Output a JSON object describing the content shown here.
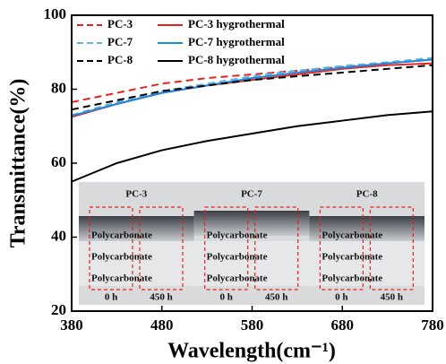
{
  "chart_data": {
    "type": "line",
    "xlabel": "Wavelength(cm⁻¹)",
    "ylabel": "Transmittance(%)",
    "x": [
      380,
      430,
      480,
      530,
      580,
      630,
      680,
      730,
      780
    ],
    "series": [
      {
        "name": "PC-3",
        "color": "#e8221e",
        "style": "dashed",
        "values": [
          76.5,
          79,
          81.5,
          83,
          84,
          85,
          86,
          87,
          88
        ]
      },
      {
        "name": "PC-3 hygrothermal",
        "color": "#e8221e",
        "style": "solid",
        "values": [
          72.5,
          76,
          79,
          81,
          82.5,
          84,
          85.5,
          86.5,
          87
        ]
      },
      {
        "name": "PC-7",
        "color": "#5fb4e6",
        "style": "dashed",
        "values": [
          73,
          76.5,
          79.5,
          81.5,
          83.5,
          85,
          86.3,
          87.3,
          88.5
        ]
      },
      {
        "name": "PC-7 hygrothermal",
        "color": "#1e88d8",
        "style": "solid",
        "values": [
          72.8,
          76,
          79,
          81,
          83,
          84.5,
          85.8,
          87,
          88
        ]
      },
      {
        "name": "PC-8",
        "color": "#000000",
        "style": "dashed",
        "values": [
          74.5,
          77,
          79.5,
          81,
          82.5,
          83.5,
          84.5,
          85.5,
          86.5
        ]
      },
      {
        "name": "PC-8 hygrothermal",
        "color": "#000000",
        "style": "solid",
        "values": [
          55,
          60,
          63.5,
          66,
          68,
          70,
          71.5,
          73,
          74
        ]
      }
    ],
    "xlim": [
      380,
      780
    ],
    "xticks": [
      380,
      480,
      580,
      680,
      780
    ],
    "ylim": [
      20,
      100
    ],
    "yticks": [
      20,
      40,
      60,
      80,
      100
    ],
    "legend": "upper-left",
    "inset": {
      "titles": [
        "PC-3",
        "PC-7",
        "PC-8"
      ],
      "text": "Polycarbonate",
      "times": [
        "0 h",
        "450 h"
      ]
    }
  }
}
